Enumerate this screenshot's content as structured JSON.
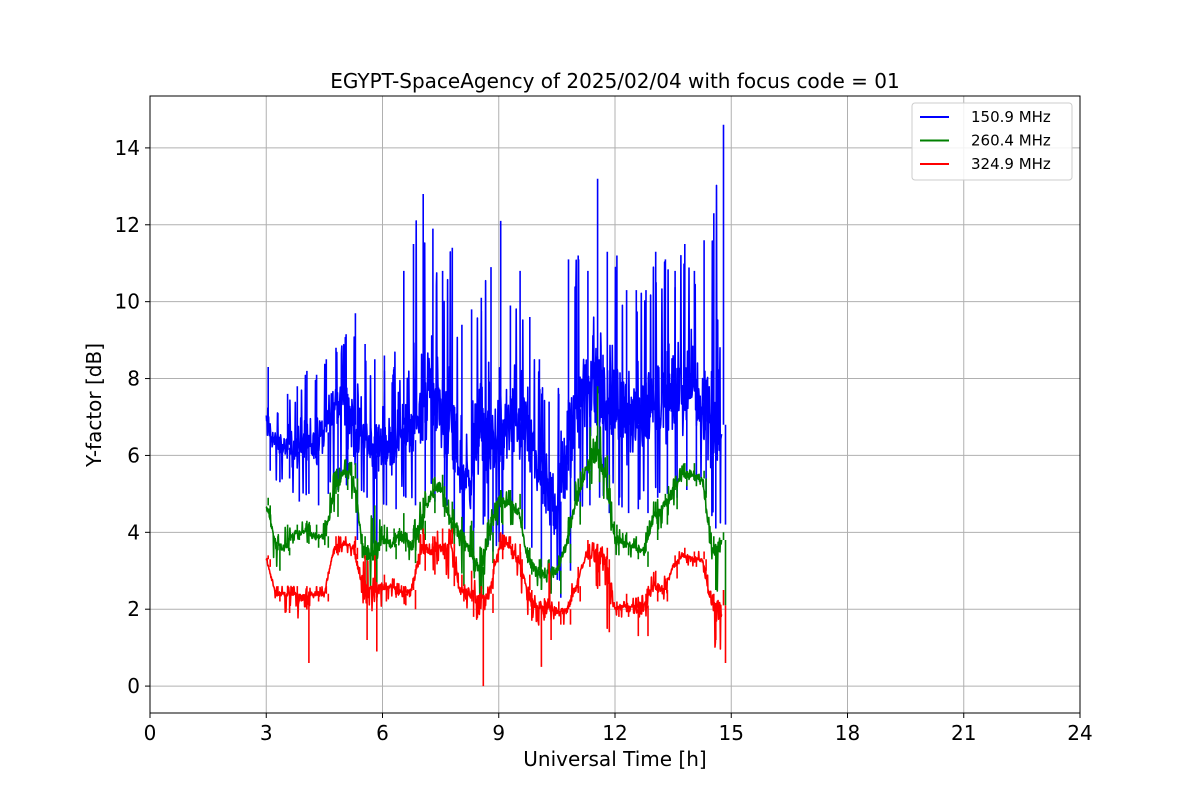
{
  "chart_data": {
    "type": "line",
    "title": "EGYPT-SpaceAgency of 2025/02/04 with focus code = 01",
    "xlabel": "Universal Time [h]",
    "ylabel": "Y-factor [dB]",
    "xlim": [
      0,
      24
    ],
    "ylim": [
      -0.7,
      15.35
    ],
    "xticks": [
      0,
      3,
      6,
      9,
      12,
      15,
      18,
      21,
      24
    ],
    "yticks": [
      0,
      2,
      4,
      6,
      8,
      10,
      12,
      14
    ],
    "grid": true,
    "legend_position": "top-right",
    "series": [
      {
        "name": "150.9 MHz",
        "color": "#0000ff",
        "x": [
          3.0,
          3.25,
          3.5,
          3.75,
          4.0,
          4.25,
          4.5,
          4.75,
          5.0,
          5.25,
          5.5,
          5.75,
          6.0,
          6.25,
          6.5,
          6.75,
          7.0,
          7.25,
          7.5,
          7.75,
          8.0,
          8.25,
          8.5,
          8.75,
          9.0,
          9.25,
          9.5,
          9.75,
          10.0,
          10.25,
          10.5,
          10.75,
          11.0,
          11.25,
          11.5,
          11.75,
          12.0,
          12.25,
          12.5,
          12.75,
          13.0,
          13.25,
          13.5,
          13.75,
          14.0,
          14.25,
          14.5,
          14.75
        ],
        "y_mid": [
          6.8,
          6.3,
          6.2,
          6.1,
          6.5,
          6.2,
          6.6,
          7.3,
          7.6,
          6.8,
          6.5,
          6.0,
          6.3,
          6.2,
          6.8,
          6.4,
          7.3,
          7.6,
          7.1,
          6.6,
          5.6,
          5.4,
          6.6,
          6.2,
          6.4,
          6.7,
          6.9,
          6.6,
          5.6,
          5.0,
          4.8,
          5.6,
          7.2,
          7.6,
          7.8,
          7.4,
          7.2,
          7.0,
          6.8,
          6.9,
          7.3,
          7.5,
          7.4,
          7.6,
          7.8,
          7.4,
          6.9,
          6.8
        ],
        "y_min": [
          5.6,
          5.3,
          5.4,
          4.8,
          5.0,
          4.7,
          5.0,
          5.1,
          5.3,
          3.8,
          4.9,
          3.5,
          4.7,
          4.6,
          4.9,
          4.7,
          5.0,
          4.8,
          4.6,
          4.3,
          3.7,
          3.2,
          4.2,
          3.5,
          3.7,
          4.2,
          4.3,
          3.6,
          3.1,
          2.5,
          2.3,
          3.0,
          4.4,
          4.7,
          4.9,
          4.5,
          4.7,
          4.5,
          4.6,
          4.5,
          4.9,
          5.0,
          4.9,
          5.1,
          5.3,
          5.0,
          4.1,
          4.2
        ],
        "y_max": [
          8.3,
          7.1,
          7.6,
          7.8,
          8.2,
          8.1,
          8.5,
          8.8,
          9.0,
          9.7,
          8.9,
          8.5,
          8.6,
          8.3,
          10.8,
          11.5,
          12.8,
          11.9,
          10.8,
          11.4,
          9.4,
          9.8,
          10.1,
          10.9,
          12.1,
          9.9,
          10.8,
          9.6,
          8.5,
          7.4,
          7.6,
          11.1,
          11.2,
          10.8,
          13.2,
          11.3,
          11.2,
          10.3,
          10.3,
          10.3,
          11.3,
          11.1,
          10.8,
          11.5,
          10.8,
          11.6,
          12.3,
          14.6
        ]
      },
      {
        "name": "260.4 MHz",
        "color": "#008000",
        "x": [
          3.0,
          3.25,
          3.5,
          3.75,
          4.0,
          4.25,
          4.5,
          4.75,
          5.0,
          5.25,
          5.5,
          5.75,
          6.0,
          6.25,
          6.5,
          6.75,
          7.0,
          7.25,
          7.5,
          7.75,
          8.0,
          8.25,
          8.5,
          8.75,
          9.0,
          9.25,
          9.5,
          9.75,
          10.0,
          10.25,
          10.5,
          10.75,
          11.0,
          11.25,
          11.5,
          11.75,
          12.0,
          12.25,
          12.5,
          12.75,
          13.0,
          13.25,
          13.5,
          13.75,
          14.0,
          14.25,
          14.5,
          14.75
        ],
        "y_mid": [
          4.7,
          3.7,
          3.6,
          4.0,
          4.0,
          3.9,
          3.9,
          5.0,
          5.6,
          5.4,
          3.6,
          3.4,
          3.8,
          3.7,
          3.9,
          3.6,
          4.3,
          5.0,
          5.2,
          4.3,
          4.0,
          3.5,
          3.1,
          4.0,
          4.9,
          4.8,
          4.6,
          3.3,
          3.0,
          2.9,
          3.0,
          3.7,
          4.8,
          5.6,
          6.0,
          5.5,
          3.8,
          3.7,
          3.6,
          3.5,
          4.4,
          4.7,
          5.1,
          5.5,
          5.5,
          5.4,
          3.5,
          3.8
        ],
        "y_min": [
          4.4,
          3.0,
          3.4,
          3.8,
          3.7,
          3.6,
          3.6,
          4.4,
          5.1,
          4.7,
          2.6,
          2.2,
          3.5,
          3.3,
          3.5,
          3.2,
          3.8,
          4.5,
          4.4,
          3.5,
          2.6,
          3.0,
          2.3,
          3.2,
          4.2,
          4.2,
          4.1,
          2.9,
          2.5,
          2.4,
          2.4,
          3.2,
          4.2,
          5.1,
          5.3,
          4.8,
          3.4,
          3.4,
          3.3,
          3.1,
          3.8,
          4.2,
          4.6,
          5.2,
          5.2,
          4.9,
          2.5,
          2.1
        ],
        "y_max": [
          4.9,
          3.9,
          4.2,
          4.2,
          4.3,
          4.2,
          4.3,
          5.6,
          5.9,
          5.8,
          3.9,
          4.7,
          4.2,
          4.1,
          4.5,
          4.1,
          4.9,
          5.4,
          5.5,
          4.8,
          4.4,
          4.3,
          3.6,
          4.4,
          5.1,
          5.1,
          5.0,
          3.6,
          3.3,
          3.3,
          3.4,
          4.3,
          5.4,
          5.9,
          7.8,
          6.0,
          4.2,
          4.0,
          3.9,
          3.8,
          4.8,
          5.0,
          5.4,
          5.8,
          5.8,
          5.6,
          3.9,
          4.0
        ]
      },
      {
        "name": "324.9 MHz",
        "color": "#ff0000",
        "x": [
          3.0,
          3.25,
          3.5,
          3.75,
          4.0,
          4.25,
          4.5,
          4.75,
          5.0,
          5.25,
          5.5,
          5.75,
          6.0,
          6.25,
          6.5,
          6.75,
          7.0,
          7.25,
          7.5,
          7.75,
          8.0,
          8.25,
          8.5,
          8.75,
          9.0,
          9.25,
          9.5,
          9.75,
          10.0,
          10.25,
          10.5,
          10.75,
          11.0,
          11.25,
          11.5,
          11.75,
          12.0,
          12.25,
          12.5,
          12.75,
          13.0,
          13.25,
          13.5,
          13.75,
          14.0,
          14.25,
          14.5,
          14.75
        ],
        "y_mid": [
          3.3,
          2.4,
          2.4,
          2.4,
          2.3,
          2.4,
          2.4,
          3.6,
          3.7,
          3.6,
          2.5,
          2.5,
          2.6,
          2.6,
          2.4,
          2.5,
          3.6,
          3.5,
          3.6,
          3.7,
          2.5,
          2.4,
          2.3,
          2.4,
          3.6,
          3.7,
          3.3,
          2.5,
          2.0,
          2.1,
          1.9,
          2.0,
          2.6,
          3.4,
          3.5,
          3.3,
          2.0,
          2.1,
          2.0,
          2.1,
          2.6,
          2.5,
          3.1,
          3.4,
          3.3,
          3.3,
          2.1,
          2.1
        ],
        "y_min": [
          3.1,
          2.2,
          1.9,
          2.2,
          0.6,
          2.2,
          2.2,
          3.4,
          3.5,
          3.3,
          1.2,
          0.9,
          2.2,
          2.3,
          2.1,
          2.0,
          3.0,
          2.9,
          3.3,
          2.6,
          2.2,
          1.8,
          0.0,
          1.9,
          3.3,
          3.3,
          2.8,
          1.7,
          0.5,
          1.2,
          1.6,
          1.6,
          2.2,
          3.1,
          2.6,
          1.4,
          1.8,
          1.8,
          1.3,
          1.3,
          2.2,
          2.2,
          2.8,
          3.2,
          3.1,
          3.0,
          1.2,
          0.6
        ],
        "y_max": [
          3.4,
          2.6,
          2.6,
          2.6,
          2.6,
          2.6,
          2.6,
          3.9,
          3.9,
          3.9,
          3.4,
          3.4,
          2.9,
          2.8,
          2.6,
          2.6,
          4.1,
          3.9,
          4.1,
          4.1,
          2.9,
          3.0,
          2.6,
          2.6,
          4.0,
          3.9,
          3.7,
          2.9,
          2.2,
          3.2,
          2.2,
          2.2,
          3.1,
          3.8,
          3.7,
          3.6,
          2.2,
          2.4,
          2.3,
          2.4,
          3.0,
          2.8,
          3.4,
          3.6,
          3.5,
          3.5,
          2.4,
          2.5
        ]
      }
    ]
  }
}
